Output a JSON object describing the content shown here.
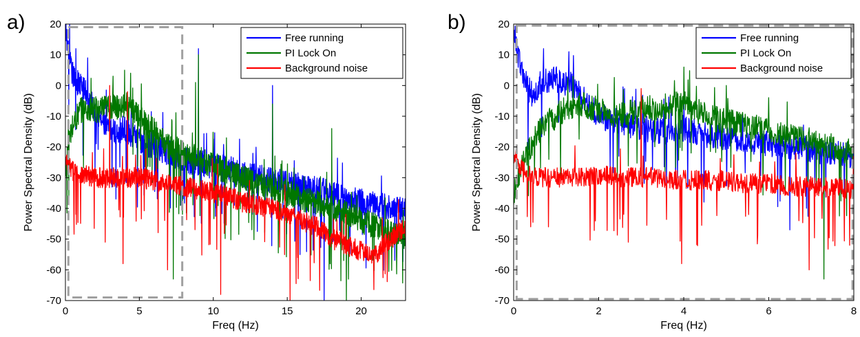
{
  "colors": {
    "free_running": "#0000ff",
    "pi_lock_on": "#007700",
    "background_noise": "#ff0000",
    "dashed_box": "#a0a0a0"
  },
  "chart_data": [
    {
      "type": "line",
      "panel_label": "a)",
      "title": "",
      "xlabel": "Freq (Hz)",
      "ylabel": "Power Spectral Density (dB)",
      "xlim": [
        0,
        23
      ],
      "ylim": [
        -70,
        20
      ],
      "xticks": [
        0,
        5,
        10,
        15,
        20
      ],
      "yticks": [
        -70,
        -60,
        -50,
        -40,
        -30,
        -20,
        -10,
        0,
        10,
        20
      ],
      "grid": false,
      "legend_position": "top-right",
      "zoom_box": {
        "x": [
          0.2,
          7.9
        ],
        "y": [
          -69,
          19
        ]
      },
      "series": [
        {
          "name": "Free running",
          "color_key": "free_running",
          "x": [
            0,
            0.2,
            0.4,
            0.6,
            0.8,
            1,
            1.2,
            1.4,
            1.6,
            2,
            2.5,
            3,
            3.5,
            4,
            4.5,
            5,
            5.5,
            6,
            6.5,
            7,
            7.5,
            8,
            8.5,
            9,
            9.5,
            10,
            11,
            12,
            13,
            14,
            15,
            16,
            17,
            18,
            19,
            20,
            21,
            22,
            23
          ],
          "values": [
            19,
            10,
            5,
            2,
            1,
            0,
            -1,
            -2,
            -5,
            -8,
            -12,
            -15,
            -15,
            -14,
            -16,
            -18,
            -19,
            -20,
            -21,
            -22,
            -23,
            -24,
            -25,
            -25,
            -26,
            -26,
            -27,
            -29,
            -30,
            -31,
            -32,
            -33,
            -34,
            -35,
            -37,
            -38,
            -39,
            -40,
            -41
          ],
          "peaks": [
            {
              "x": 0.7,
              "value": 12
            },
            {
              "x": 1.5,
              "value": 9
            },
            {
              "x": 9,
              "value": 12
            },
            {
              "x": 14,
              "value": 0
            },
            {
              "x": 18,
              "value": -24
            }
          ],
          "dips": [
            {
              "x": 17.5,
              "value": -70
            }
          ]
        },
        {
          "name": "PI Lock On",
          "color_key": "pi_lock_on",
          "x": [
            0,
            0.2,
            0.4,
            0.6,
            0.8,
            1,
            1.5,
            2,
            2.5,
            3,
            3.5,
            4,
            4.5,
            5,
            5.5,
            6,
            6.5,
            7,
            7.5,
            8,
            8.5,
            9,
            9.5,
            10,
            11,
            12,
            13,
            14,
            15,
            16,
            17,
            18,
            19,
            20,
            21,
            22,
            23
          ],
          "values": [
            -30,
            -20,
            -15,
            -12,
            -10,
            -8,
            -8,
            -8,
            -8,
            -7,
            -7,
            -6,
            -8,
            -10,
            -13,
            -15,
            -18,
            -20,
            -21,
            -22,
            -23,
            -24,
            -25,
            -26,
            -28,
            -30,
            -32,
            -33,
            -35,
            -37,
            -38,
            -40,
            -42,
            -44,
            -46,
            -48,
            -50
          ],
          "peaks": [
            {
              "x": 3.2,
              "value": -1
            },
            {
              "x": 4,
              "value": 5
            },
            {
              "x": 8.8,
              "value": 1
            },
            {
              "x": 9,
              "value": 10
            },
            {
              "x": 14,
              "value": -6
            },
            {
              "x": 18,
              "value": -14
            }
          ],
          "dips": [
            {
              "x": 7.3,
              "value": -63
            },
            {
              "x": 19,
              "value": -70
            }
          ]
        },
        {
          "name": "Background noise",
          "color_key": "background_noise",
          "x": [
            0,
            0.5,
            1,
            2,
            3,
            4,
            5,
            6,
            7,
            8,
            9,
            10,
            11,
            12,
            13,
            14,
            15,
            16,
            17,
            18,
            19,
            20,
            21,
            22,
            23
          ],
          "values": [
            -25,
            -28,
            -29,
            -30,
            -30,
            -30,
            -30,
            -31,
            -32,
            -33,
            -34,
            -35,
            -36,
            -38,
            -39,
            -40,
            -42,
            -44,
            -46,
            -50,
            -52,
            -54,
            -55,
            -50,
            -46
          ],
          "peaks": [
            {
              "x": 3,
              "value": 0
            },
            {
              "x": 4.2,
              "value": -2
            }
          ],
          "dips": [
            {
              "x": 2.7,
              "value": -51
            },
            {
              "x": 3.9,
              "value": -58
            },
            {
              "x": 6.9,
              "value": -60
            },
            {
              "x": 10.5,
              "value": -68
            },
            {
              "x": 15.2,
              "value": -70
            }
          ]
        }
      ]
    },
    {
      "type": "line",
      "panel_label": "b)",
      "title": "",
      "xlabel": "Freq (Hz)",
      "ylabel": "Power Spectral Density (dB)",
      "xlim": [
        0,
        8
      ],
      "ylim": [
        -70,
        20
      ],
      "xticks": [
        0,
        2,
        4,
        6,
        8
      ],
      "yticks": [
        -70,
        -60,
        -50,
        -40,
        -30,
        -20,
        -10,
        0,
        10,
        20
      ],
      "grid": false,
      "legend_position": "top-right",
      "zoom_box": {
        "x": [
          0.07,
          7.97
        ],
        "y": [
          -69.5,
          19.5
        ]
      },
      "series": [
        {
          "name": "Free running",
          "color_key": "free_running",
          "x": [
            0,
            0.1,
            0.2,
            0.3,
            0.4,
            0.5,
            0.6,
            0.8,
            1,
            1.2,
            1.4,
            1.6,
            1.8,
            2,
            2.5,
            3,
            3.5,
            4,
            4.5,
            5,
            5.5,
            6,
            6.5,
            7,
            7.5,
            8
          ],
          "values": [
            18,
            10,
            4,
            0,
            -2,
            -4,
            0,
            2,
            2,
            1,
            0,
            -4,
            -7,
            -10,
            -12,
            -14,
            -15,
            -14,
            -16,
            -17,
            -18,
            -19,
            -20,
            -21,
            -22,
            -23
          ],
          "peaks": [
            {
              "x": 0.7,
              "value": 12
            },
            {
              "x": 1.3,
              "value": 11
            },
            {
              "x": 4,
              "value": -6
            }
          ],
          "dips": [
            {
              "x": 6.5,
              "value": -47
            }
          ]
        },
        {
          "name": "PI Lock On",
          "color_key": "pi_lock_on",
          "x": [
            0,
            0.2,
            0.4,
            0.6,
            0.8,
            1,
            1.2,
            1.5,
            2,
            2.5,
            3,
            3.5,
            4,
            4.5,
            5,
            5.5,
            6,
            6.5,
            7,
            7.5,
            8
          ],
          "values": [
            -35,
            -26,
            -20,
            -15,
            -12,
            -10,
            -8,
            -6,
            -8,
            -10,
            -8,
            -7,
            -6,
            -10,
            -12,
            -13,
            -15,
            -17,
            -18,
            -20,
            -22
          ],
          "peaks": [
            {
              "x": 1.4,
              "value": 3
            },
            {
              "x": 3,
              "value": -2
            },
            {
              "x": 4,
              "value": 6
            },
            {
              "x": 5,
              "value": 0
            }
          ],
          "dips": [
            {
              "x": 7.3,
              "value": -63
            }
          ]
        },
        {
          "name": "Background noise",
          "color_key": "background_noise",
          "x": [
            0,
            0.2,
            0.5,
            1,
            1.5,
            2,
            2.5,
            3,
            3.5,
            4,
            4.5,
            5,
            5.5,
            6,
            6.5,
            7,
            7.5,
            8
          ],
          "values": [
            -22,
            -28,
            -30,
            -30,
            -30,
            -29,
            -30,
            -30,
            -30,
            -31,
            -31,
            -31,
            -32,
            -32,
            -33,
            -33,
            -33,
            -34
          ],
          "peaks": [
            {
              "x": 3,
              "value": -1
            }
          ],
          "dips": [
            {
              "x": 0.4,
              "value": -46
            },
            {
              "x": 2.7,
              "value": -51
            },
            {
              "x": 3.95,
              "value": -58
            },
            {
              "x": 6.95,
              "value": -60
            },
            {
              "x": 7.9,
              "value": -52
            }
          ]
        }
      ]
    }
  ]
}
